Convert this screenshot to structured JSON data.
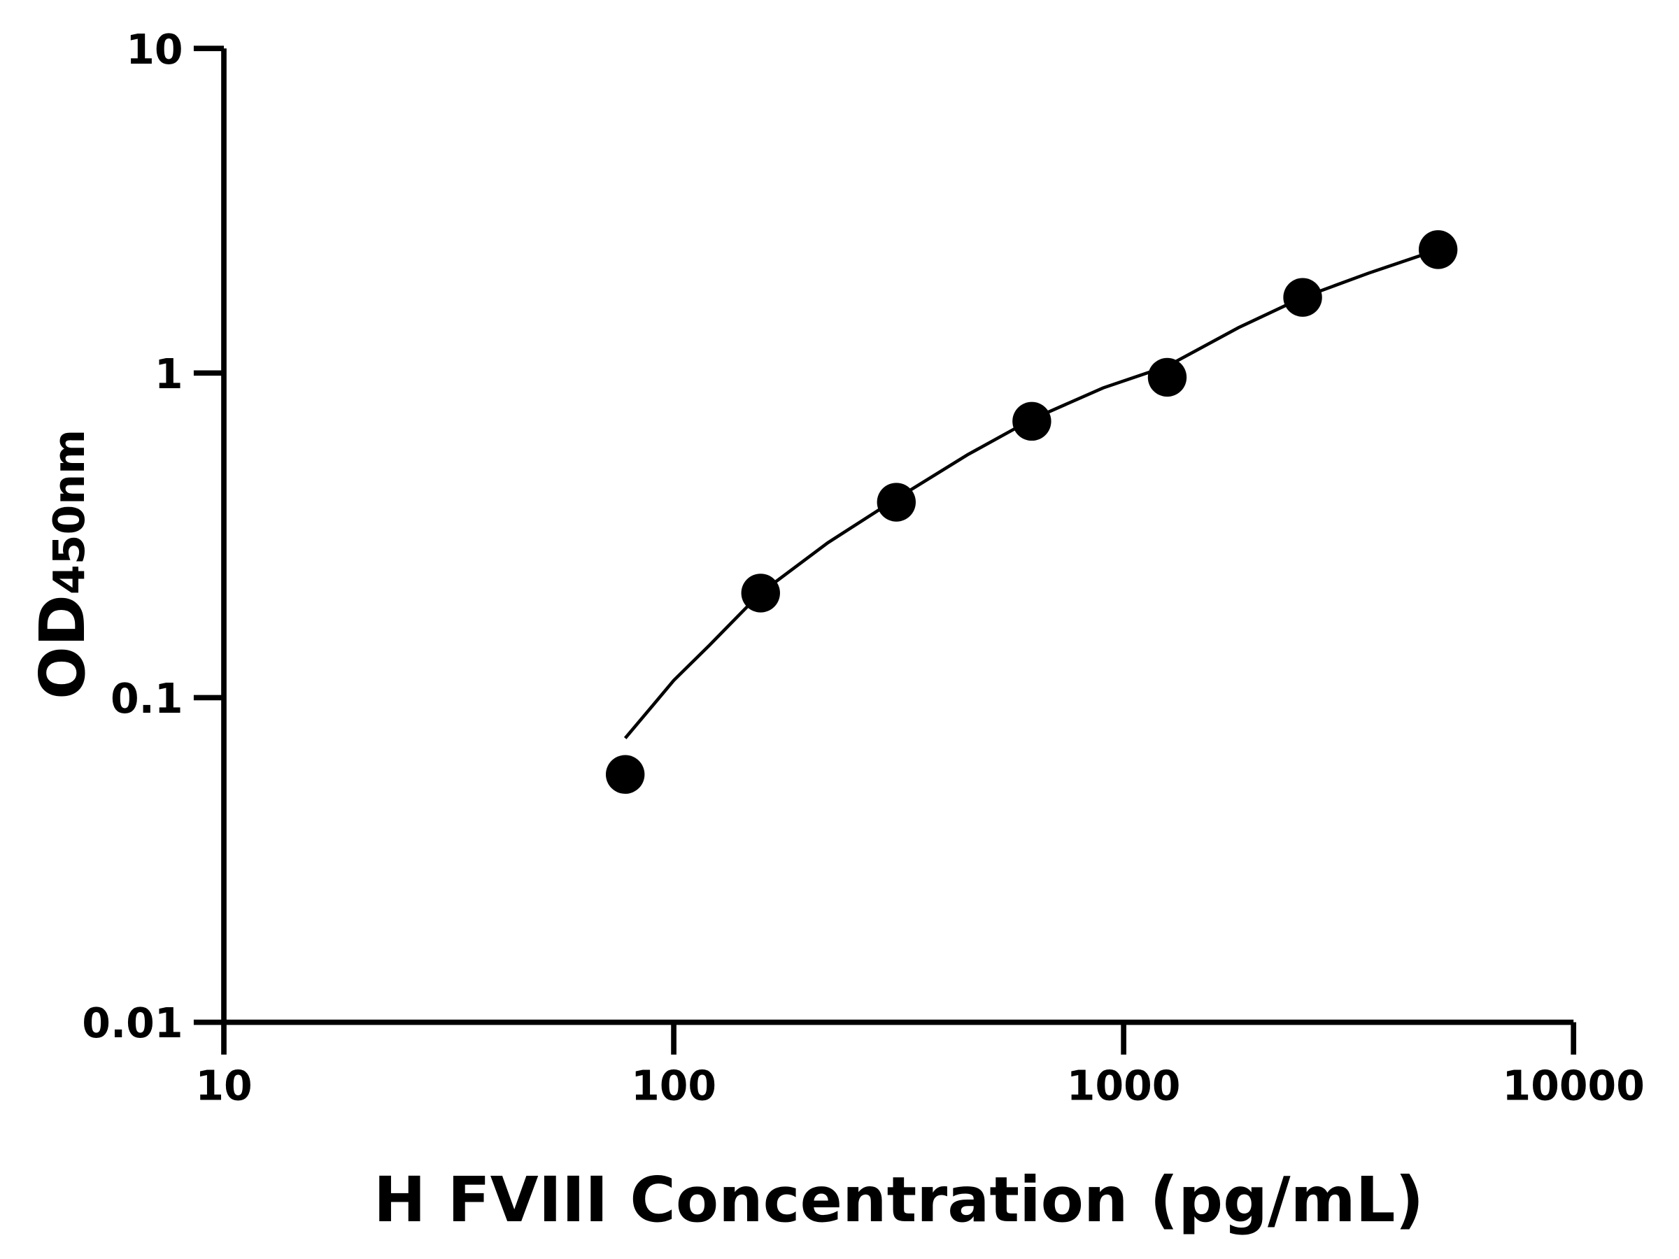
{
  "chart_data": {
    "type": "scatter",
    "xlabel": "H FVIII Concentration (pg/mL)",
    "ylabel": {
      "main": "OD",
      "subscript": "450nm"
    },
    "x_scale": "log",
    "y_scale": "log",
    "xlim": [
      10,
      10000
    ],
    "ylim": [
      0.01,
      10
    ],
    "x_ticks": [
      {
        "value": 10,
        "label": "10"
      },
      {
        "value": 100,
        "label": "100"
      },
      {
        "value": 1000,
        "label": "1000"
      },
      {
        "value": 10000,
        "label": "10000"
      }
    ],
    "y_ticks": [
      {
        "value": 0.01,
        "label": "0.01"
      },
      {
        "value": 0.1,
        "label": "0.1"
      },
      {
        "value": 1,
        "label": "1"
      },
      {
        "value": 10,
        "label": "10"
      }
    ],
    "grid": false,
    "points": {
      "x": [
        78,
        156,
        312.5,
        625,
        1250,
        2500,
        5000
      ],
      "y": [
        0.058,
        0.21,
        0.4,
        0.71,
        0.97,
        1.71,
        2.4
      ]
    },
    "fit_curve": {
      "x": [
        78,
        90,
        100,
        120,
        156,
        220,
        312.5,
        450,
        625,
        900,
        1250,
        1800,
        2500,
        3500,
        5000
      ],
      "y": [
        0.075,
        0.095,
        0.113,
        0.145,
        0.21,
        0.3,
        0.41,
        0.56,
        0.72,
        0.9,
        1.05,
        1.38,
        1.71,
        2.03,
        2.4
      ]
    },
    "colors": {
      "points": "#000000",
      "curve": "#000000",
      "axes": "#000000"
    }
  }
}
